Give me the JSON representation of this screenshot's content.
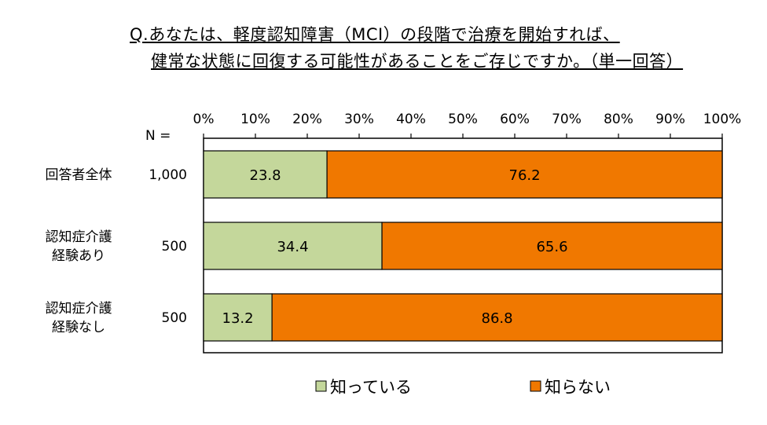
{
  "title_lines": [
    "Q.あなたは、軽度認知障害（MCI）の段階で治療を開始すれば、",
    "健常な状態に回復する可能性があることをご存じですか。（単一回答）"
  ],
  "n_header": "N =",
  "colors": {
    "series1": "#c4d79b",
    "series2": "#f07800",
    "border": "#000000"
  },
  "chart_data": {
    "type": "bar",
    "orientation": "horizontal",
    "stacked": true,
    "xlim": [
      0,
      100
    ],
    "x_ticks": [
      "0%",
      "10%",
      "20%",
      "30%",
      "40%",
      "50%",
      "60%",
      "70%",
      "80%",
      "90%",
      "100%"
    ],
    "categories": [
      {
        "lines": [
          "回答者全体"
        ],
        "n": "1,000"
      },
      {
        "lines": [
          "認知症介護",
          "経験あり"
        ],
        "n": "500"
      },
      {
        "lines": [
          "認知症介護",
          "経験なし"
        ],
        "n": "500"
      }
    ],
    "series": [
      {
        "name": "知っている",
        "values": [
          23.8,
          34.4,
          13.2
        ]
      },
      {
        "name": "知らない",
        "values": [
          76.2,
          65.6,
          86.8
        ]
      }
    ],
    "legend_position": "bottom"
  }
}
